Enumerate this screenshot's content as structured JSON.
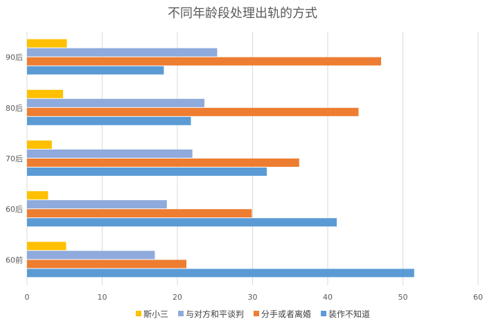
{
  "chart_data": {
    "type": "bar",
    "orientation": "horizontal",
    "title": "不同年龄段处理出轨的方式",
    "categories": [
      "90后",
      "80后",
      "70后",
      "60后",
      "60前"
    ],
    "xlim": [
      0,
      60
    ],
    "xticks": [
      0,
      10,
      20,
      30,
      40,
      50,
      60
    ],
    "grid": true,
    "legend_position": "bottom",
    "series": [
      {
        "name": "斯小三",
        "color": "#FFC000",
        "values": [
          5.3,
          4.8,
          3.3,
          2.8,
          5.2
        ]
      },
      {
        "name": "与对方和平谈判",
        "color": "#8FAADC",
        "values": [
          25.3,
          23.6,
          22.0,
          18.6,
          17.0
        ]
      },
      {
        "name": "分手或者离婚",
        "color": "#ED7D31",
        "values": [
          47.1,
          44.1,
          36.2,
          29.9,
          21.2
        ]
      },
      {
        "name": "装作不知道",
        "color": "#5B9BD5",
        "values": [
          18.2,
          21.8,
          31.9,
          41.2,
          51.5
        ]
      }
    ]
  }
}
